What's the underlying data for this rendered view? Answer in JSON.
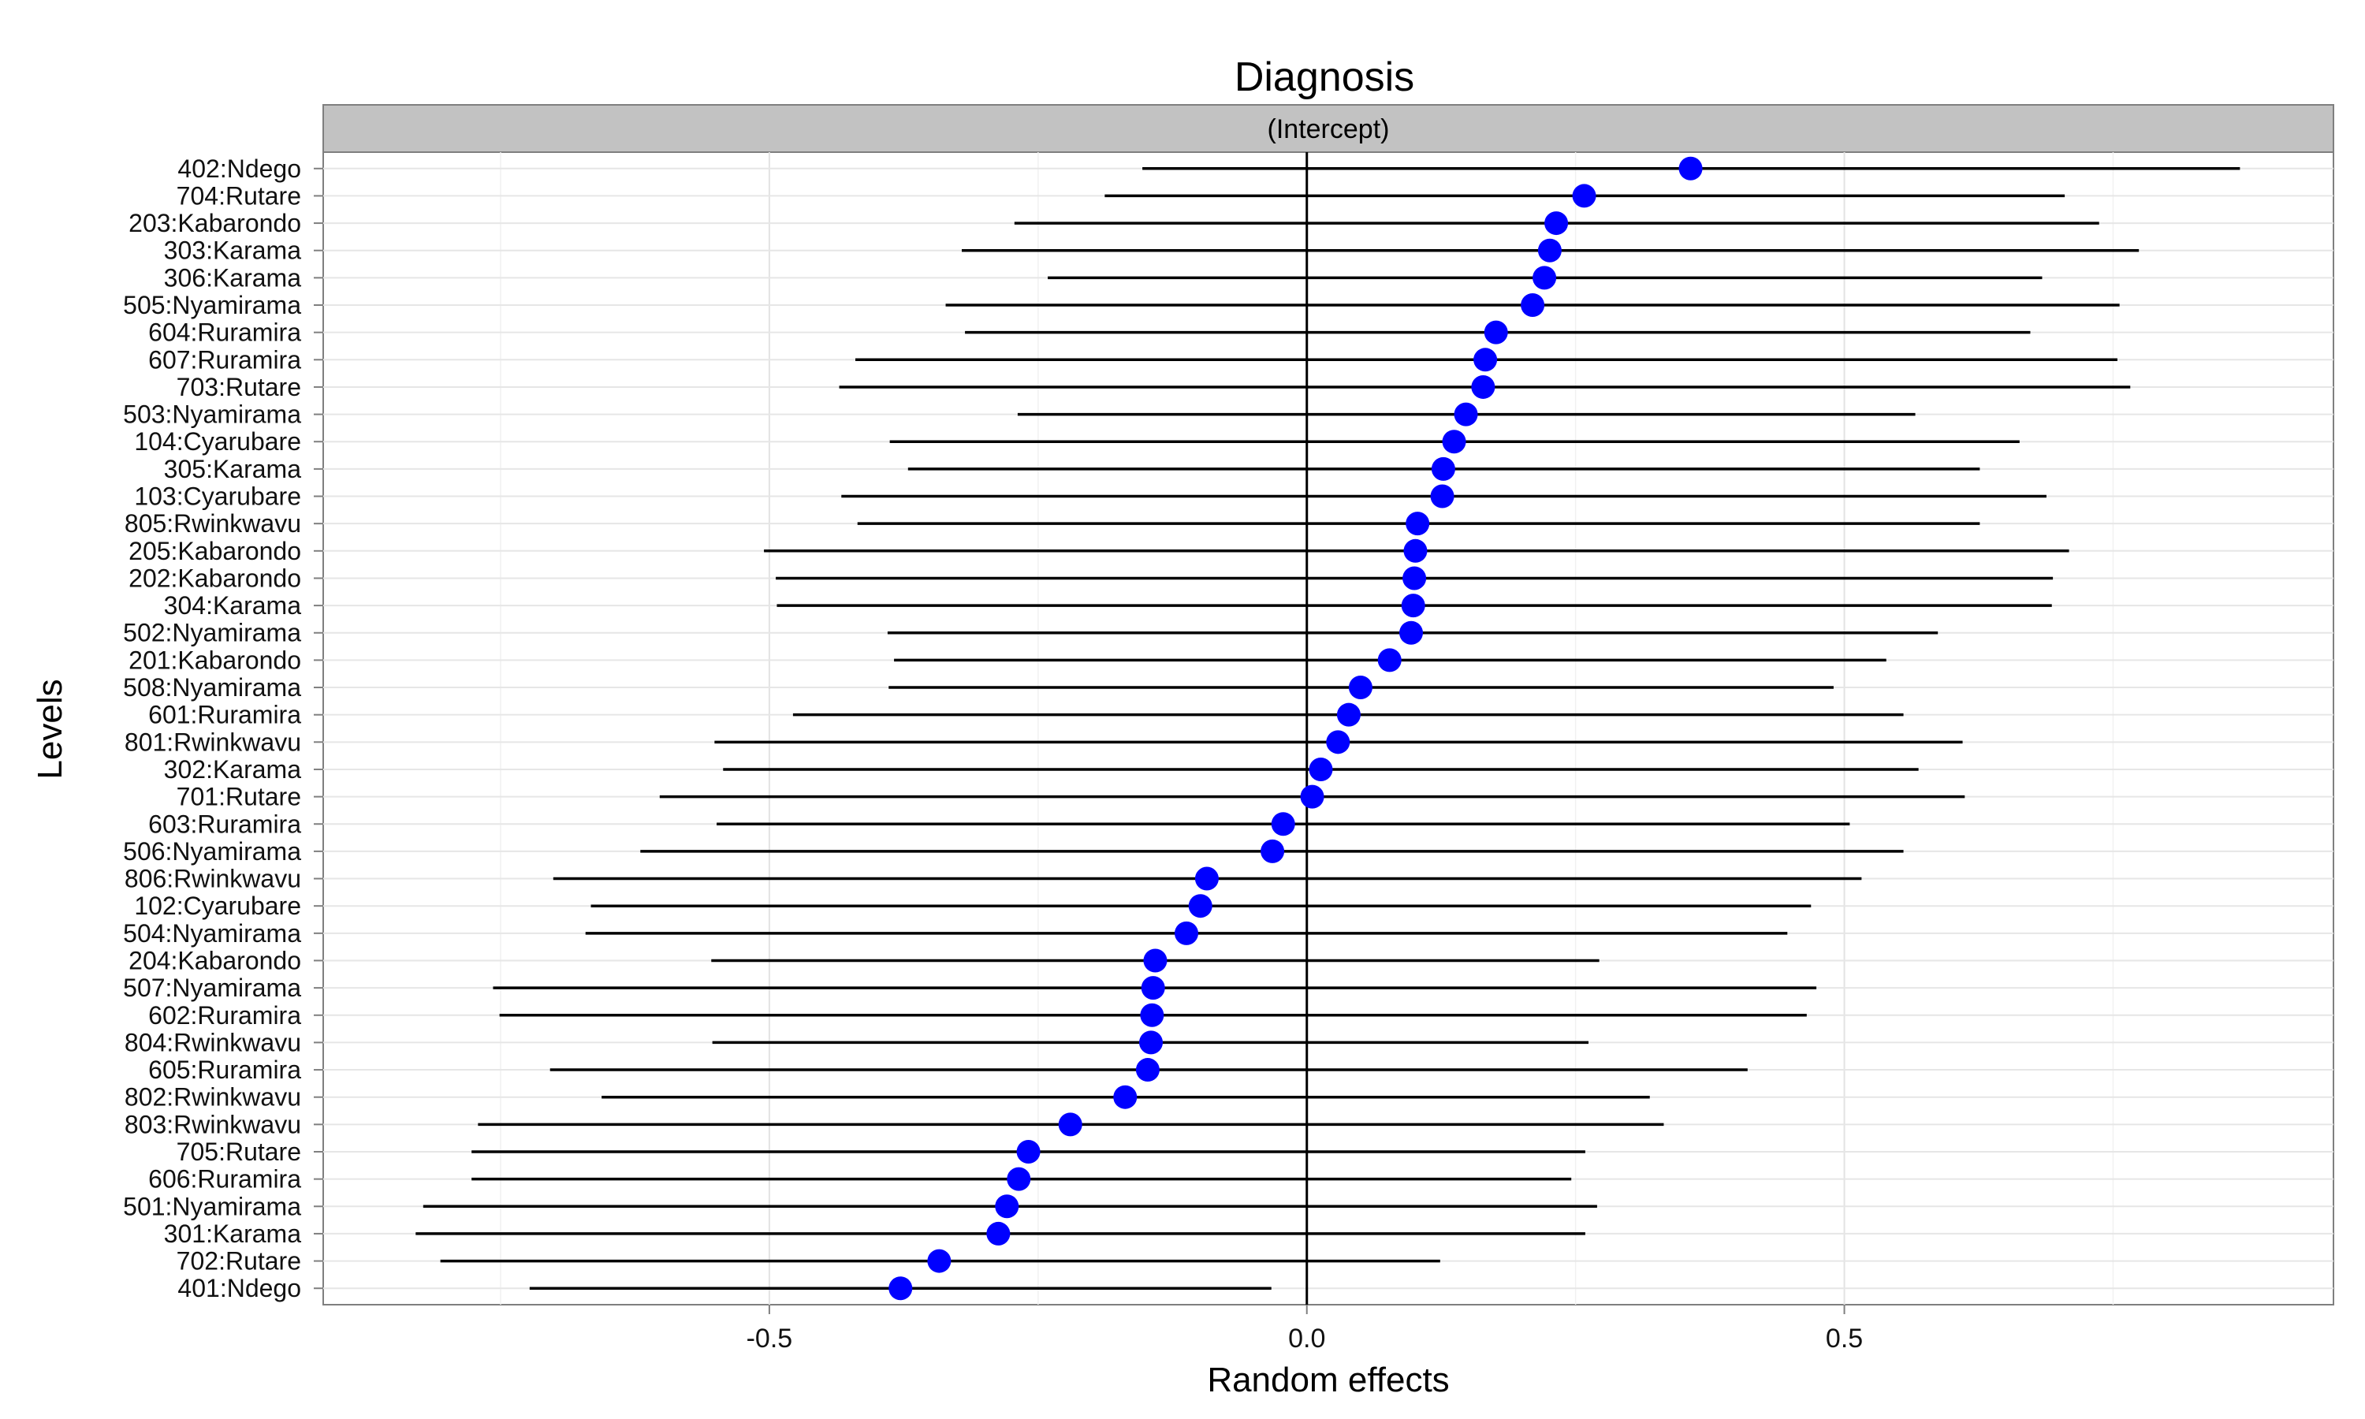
{
  "chart_data": {
    "type": "scatter",
    "title": "Diagnosis",
    "facet_label": "(Intercept)",
    "xlabel": "Random effects",
    "ylabel": "Levels",
    "xlim": [
      -0.915,
      0.955
    ],
    "xticks": [
      -0.5,
      0.0,
      0.5
    ],
    "xtick_labels": [
      "-0.5",
      "0.0",
      "0.5"
    ],
    "reference_line": 0.0,
    "grid": true,
    "point_color": "#0000FF",
    "interval_color": "#000000",
    "levels": [
      "402:Ndego",
      "704:Rutare",
      "203:Kabarondo",
      "303:Karama",
      "306:Karama",
      "505:Nyamirama",
      "604:Ruramira",
      "607:Ruramira",
      "703:Rutare",
      "503:Nyamirama",
      "104:Cyarubare",
      "305:Karama",
      "103:Cyarubare",
      "805:Rwinkwavu",
      "205:Kabarondo",
      "202:Kabarondo",
      "304:Karama",
      "502:Nyamirama",
      "201:Kabarondo",
      "508:Nyamirama",
      "601:Ruramira",
      "801:Rwinkwavu",
      "302:Karama",
      "701:Rutare",
      "603:Ruramira",
      "506:Nyamirama",
      "806:Rwinkwavu",
      "102:Cyarubare",
      "504:Nyamirama",
      "204:Kabarondo",
      "507:Nyamirama",
      "602:Ruramira",
      "804:Rwinkwavu",
      "605:Ruramira",
      "802:Rwinkwavu",
      "803:Rwinkwavu",
      "705:Rutare",
      "606:Ruramira",
      "501:Nyamirama",
      "301:Karama",
      "702:Rutare",
      "401:Ndego"
    ],
    "estimate": [
      0.357,
      0.258,
      0.232,
      0.226,
      0.221,
      0.21,
      0.176,
      0.166,
      0.164,
      0.148,
      0.137,
      0.127,
      0.126,
      0.103,
      0.101,
      0.1,
      0.099,
      0.097,
      0.077,
      0.05,
      0.039,
      0.029,
      0.013,
      0.005,
      -0.022,
      -0.032,
      -0.093,
      -0.099,
      -0.112,
      -0.141,
      -0.143,
      -0.144,
      -0.145,
      -0.148,
      -0.169,
      -0.22,
      -0.259,
      -0.268,
      -0.279,
      -0.287,
      -0.342,
      -0.378
    ],
    "lower": [
      -0.153,
      -0.188,
      -0.272,
      -0.321,
      -0.241,
      -0.336,
      -0.318,
      -0.42,
      -0.435,
      -0.269,
      -0.388,
      -0.371,
      -0.433,
      -0.418,
      -0.505,
      -0.494,
      -0.493,
      -0.39,
      -0.384,
      -0.389,
      -0.478,
      -0.551,
      -0.543,
      -0.602,
      -0.549,
      -0.62,
      -0.701,
      -0.666,
      -0.671,
      -0.554,
      -0.757,
      -0.751,
      -0.553,
      -0.704,
      -0.656,
      -0.771,
      -0.777,
      -0.777,
      -0.822,
      -0.829,
      -0.806,
      -0.723
    ],
    "upper": [
      0.868,
      0.705,
      0.737,
      0.774,
      0.684,
      0.756,
      0.673,
      0.754,
      0.766,
      0.566,
      0.663,
      0.626,
      0.688,
      0.626,
      0.709,
      0.694,
      0.693,
      0.587,
      0.539,
      0.49,
      0.555,
      0.61,
      0.569,
      0.612,
      0.505,
      0.555,
      0.516,
      0.469,
      0.447,
      0.272,
      0.474,
      0.465,
      0.262,
      0.41,
      0.319,
      0.332,
      0.259,
      0.246,
      0.27,
      0.259,
      0.124,
      -0.033
    ]
  }
}
